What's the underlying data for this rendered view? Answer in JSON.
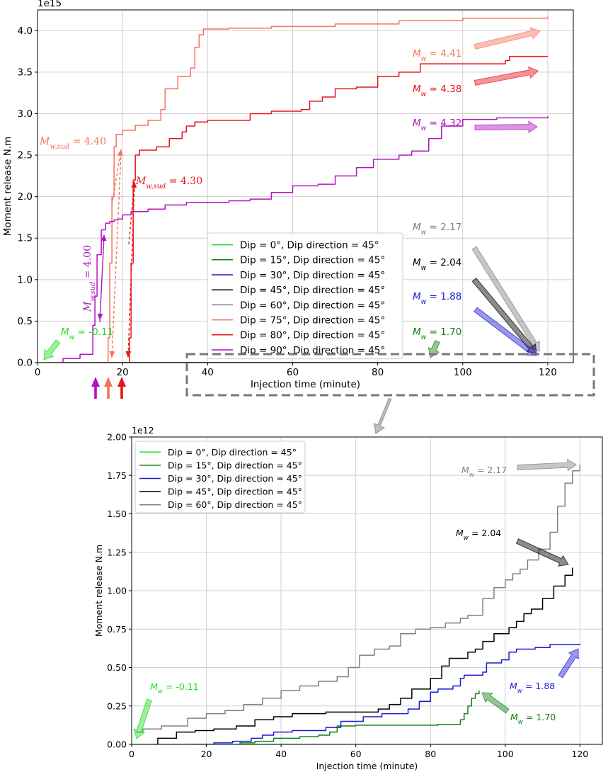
{
  "chart_data": [
    {
      "type": "line",
      "ylabel": "Moment release N.m",
      "xlabel": "Injection time (minute)",
      "exponent_label": "1e15",
      "xlim": [
        0,
        126
      ],
      "ylim": [
        0,
        4.25
      ],
      "xticks": [
        0,
        20,
        40,
        60,
        80,
        100,
        120
      ],
      "yticks": [
        0.0,
        0.5,
        1.0,
        1.5,
        2.0,
        2.5,
        3.0,
        3.5,
        4.0
      ],
      "grid": true,
      "legend_position": "center-right",
      "series": [
        {
          "name": "Dip =   0°, Dip direction = 45°",
          "color": "#22dd22",
          "points": [
            [
              0,
              0
            ],
            [
              120,
              4e-07
            ]
          ]
        },
        {
          "name": "Dip = 15°, Dip direction = 45°",
          "color": "#138013",
          "points": [
            [
              28,
              0
            ],
            [
              93,
              0.00035
            ]
          ]
        },
        {
          "name": "Dip = 30°, Dip direction = 45°",
          "color": "#1a1ad6",
          "points": [
            [
              15,
              0
            ],
            [
              120,
              0.00065
            ]
          ]
        },
        {
          "name": "Dip = 45°, Dip direction = 45°",
          "color": "#000000",
          "points": [
            [
              6,
              0
            ],
            [
              118,
              0.00115
            ]
          ]
        },
        {
          "name": "Dip = 60°, Dip direction = 45°",
          "color": "#808080",
          "points": [
            [
              1,
              0
            ],
            [
              120,
              0.0018
            ]
          ]
        },
        {
          "name": "Dip = 75°, Dip direction = 45°",
          "color": "#f4735b",
          "points": [
            [
              16,
              0
            ],
            [
              16.6,
              0.3
            ],
            [
              17,
              1.2
            ],
            [
              17.5,
              2.0
            ],
            [
              18,
              2.6
            ],
            [
              18.5,
              2.75
            ],
            [
              20,
              2.8
            ],
            [
              23,
              2.86
            ],
            [
              26,
              2.92
            ],
            [
              29,
              3.05
            ],
            [
              30,
              3.3
            ],
            [
              33,
              3.45
            ],
            [
              36,
              3.55
            ],
            [
              37,
              3.8
            ],
            [
              38,
              3.95
            ],
            [
              39,
              4.02
            ],
            [
              45,
              4.03
            ],
            [
              55,
              4.05
            ],
            [
              70,
              4.08
            ],
            [
              85,
              4.12
            ],
            [
              100,
              4.15
            ],
            [
              120,
              4.17
            ]
          ]
        },
        {
          "name": "Dip = 80°, Dip direction = 45°",
          "color": "#e8141a",
          "points": [
            [
              21,
              0
            ],
            [
              21.6,
              0.3
            ],
            [
              22,
              1.2
            ],
            [
              22.5,
              2.2
            ],
            [
              23,
              2.5
            ],
            [
              24,
              2.56
            ],
            [
              28,
              2.6
            ],
            [
              31,
              2.7
            ],
            [
              34,
              2.78
            ],
            [
              35,
              2.85
            ],
            [
              37,
              2.9
            ],
            [
              40,
              2.92
            ],
            [
              48,
              2.92
            ],
            [
              50,
              3.0
            ],
            [
              55,
              3.03
            ],
            [
              62,
              3.05
            ],
            [
              64,
              3.15
            ],
            [
              67,
              3.2
            ],
            [
              70,
              3.3
            ],
            [
              75,
              3.32
            ],
            [
              80,
              3.45
            ],
            [
              85,
              3.5
            ],
            [
              90,
              3.6
            ],
            [
              110,
              3.64
            ],
            [
              111,
              3.69
            ],
            [
              120,
              3.69
            ]
          ]
        },
        {
          "name": "Dip = 90°, Dip direction = 45°",
          "color": "#b014c0",
          "points": [
            [
              5,
              0
            ],
            [
              6,
              0.05
            ],
            [
              9,
              0.05
            ],
            [
              10,
              0.1
            ],
            [
              13,
              0.45
            ],
            [
              13.5,
              0.8
            ],
            [
              14,
              1.3
            ],
            [
              15,
              1.6
            ],
            [
              16,
              1.68
            ],
            [
              17,
              1.7
            ],
            [
              18,
              1.72
            ],
            [
              19,
              1.73
            ],
            [
              20,
              1.78
            ],
            [
              22,
              1.82
            ],
            [
              26,
              1.85
            ],
            [
              30,
              1.9
            ],
            [
              35,
              1.93
            ],
            [
              45,
              1.95
            ],
            [
              50,
              1.97
            ],
            [
              55,
              2.05
            ],
            [
              60,
              2.13
            ],
            [
              66,
              2.15
            ],
            [
              70,
              2.25
            ],
            [
              75,
              2.35
            ],
            [
              79,
              2.45
            ],
            [
              85,
              2.5
            ],
            [
              88,
              2.55
            ],
            [
              92,
              2.7
            ],
            [
              95,
              2.85
            ],
            [
              100,
              2.93
            ],
            [
              108,
              2.95
            ],
            [
              120,
              2.97
            ]
          ]
        }
      ],
      "annotations": [
        {
          "text": "M_w = 4.41",
          "label": "M",
          "sub": "w",
          "rest": " = 4.41",
          "color": "#f4735b"
        },
        {
          "text": "M_w = 4.38",
          "label": "M",
          "sub": "w",
          "rest": " = 4.38",
          "color": "#e8141a"
        },
        {
          "text": "M_w = 4.32",
          "label": "M",
          "sub": "w",
          "rest": " = 4.32",
          "color": "#b014c0"
        },
        {
          "text": "M_w = 2.17",
          "label": "M",
          "sub": "w",
          "rest": " = 2.17",
          "color": "#808080"
        },
        {
          "text": "M_w = 2.04",
          "label": "M",
          "sub": "w",
          "rest": " = 2.04",
          "color": "#000000"
        },
        {
          "text": "M_w = 1.88",
          "label": "M",
          "sub": "w",
          "rest": " = 1.88",
          "color": "#1a1ad6"
        },
        {
          "text": "M_w = 1.70",
          "label": "M",
          "sub": "w",
          "rest": " = 1.70",
          "color": "#138013"
        },
        {
          "text": "M_w = -0.11",
          "label": "M",
          "sub": "w",
          "rest": " = -0.11",
          "color": "#22dd22"
        },
        {
          "text": "M_w,sud = 4.40",
          "label": "M",
          "sub": "w,sud",
          "rest": " = 4.40",
          "color": "#f4735b"
        },
        {
          "text": "M_w,sud = 4.30",
          "label": "M",
          "sub": "w,sud",
          "rest": " = 4.30",
          "color": "#e8141a"
        },
        {
          "text": "M_w,sud = 4.00",
          "label": "M",
          "sub": "w,sud",
          "rest": " = 4.00",
          "color": "#b014c0"
        }
      ]
    },
    {
      "type": "line",
      "ylabel": "Moment release N.m",
      "xlabel": "Injection time (minute)",
      "exponent_label": "1e12",
      "xlim": [
        0,
        126
      ],
      "ylim": [
        0,
        2.0
      ],
      "xticks": [
        0,
        20,
        40,
        60,
        80,
        100,
        120
      ],
      "yticks": [
        0.0,
        0.25,
        0.5,
        0.75,
        1.0,
        1.25,
        1.5,
        1.75,
        2.0
      ],
      "ytick_labels": [
        "0.00",
        "0.25",
        "0.50",
        "0.75",
        "1.00",
        "1.25",
        "1.50",
        "1.75",
        "2.00"
      ],
      "grid": true,
      "legend_position": "top-left",
      "series": [
        {
          "name": "Dip =   0°, Dip direction = 45°",
          "color": "#22dd22",
          "points": [
            [
              0,
              0
            ],
            [
              120,
              0.0004
            ]
          ]
        },
        {
          "name": "Dip = 15°, Dip direction = 45°",
          "color": "#138013",
          "points": [
            [
              28,
              0
            ],
            [
              29,
              0.01
            ],
            [
              33,
              0.02
            ],
            [
              38,
              0.04
            ],
            [
              45,
              0.05
            ],
            [
              50,
              0.06
            ],
            [
              53,
              0.08
            ],
            [
              55,
              0.12
            ],
            [
              60,
              0.125
            ],
            [
              70,
              0.125
            ],
            [
              82,
              0.13
            ],
            [
              87,
              0.13
            ],
            [
              88,
              0.16
            ],
            [
              89,
              0.2
            ],
            [
              90,
              0.25
            ],
            [
              91,
              0.3
            ],
            [
              92,
              0.33
            ],
            [
              93,
              0.35
            ]
          ]
        },
        {
          "name": "Dip = 30°, Dip direction = 45°",
          "color": "#1a1ad6",
          "points": [
            [
              15,
              0
            ],
            [
              22,
              0.01
            ],
            [
              27,
              0.02
            ],
            [
              32,
              0.04
            ],
            [
              35,
              0.06
            ],
            [
              38,
              0.08
            ],
            [
              43,
              0.09
            ],
            [
              51,
              0.09
            ],
            [
              52,
              0.11
            ],
            [
              56,
              0.15
            ],
            [
              62,
              0.18
            ],
            [
              67,
              0.2
            ],
            [
              72,
              0.2
            ],
            [
              74,
              0.23
            ],
            [
              77,
              0.28
            ],
            [
              80,
              0.34
            ],
            [
              82,
              0.36
            ],
            [
              86,
              0.38
            ],
            [
              88,
              0.43
            ],
            [
              89,
              0.45
            ],
            [
              94,
              0.47
            ],
            [
              95,
              0.53
            ],
            [
              99,
              0.55
            ],
            [
              101,
              0.6
            ],
            [
              103,
              0.62
            ],
            [
              108,
              0.63
            ],
            [
              112,
              0.65
            ],
            [
              120,
              0.655
            ]
          ]
        },
        {
          "name": "Dip = 45°, Dip direction = 45°",
          "color": "#000000",
          "points": [
            [
              6,
              0
            ],
            [
              7,
              0.04
            ],
            [
              12,
              0.08
            ],
            [
              17,
              0.09
            ],
            [
              22,
              0.1
            ],
            [
              28,
              0.12
            ],
            [
              33,
              0.16
            ],
            [
              38,
              0.18
            ],
            [
              43,
              0.2
            ],
            [
              52,
              0.21
            ],
            [
              60,
              0.21
            ],
            [
              66,
              0.23
            ],
            [
              69,
              0.26
            ],
            [
              72,
              0.3
            ],
            [
              75,
              0.36
            ],
            [
              80,
              0.43
            ],
            [
              83,
              0.51
            ],
            [
              85,
              0.56
            ],
            [
              90,
              0.6
            ],
            [
              92,
              0.62
            ],
            [
              94,
              0.67
            ],
            [
              97,
              0.72
            ],
            [
              101,
              0.76
            ],
            [
              103,
              0.8
            ],
            [
              105,
              0.85
            ],
            [
              107,
              0.88
            ],
            [
              110,
              0.95
            ],
            [
              113,
              1.03
            ],
            [
              116,
              1.1
            ],
            [
              118,
              1.15
            ]
          ]
        },
        {
          "name": "Dip = 60°, Dip direction = 45°",
          "color": "#808080",
          "points": [
            [
              1,
              0.08
            ],
            [
              3,
              0.1
            ],
            [
              8,
              0.12
            ],
            [
              15,
              0.17
            ],
            [
              20,
              0.2
            ],
            [
              25,
              0.22
            ],
            [
              30,
              0.26
            ],
            [
              35,
              0.3
            ],
            [
              40,
              0.35
            ],
            [
              45,
              0.38
            ],
            [
              50,
              0.41
            ],
            [
              55,
              0.44
            ],
            [
              58,
              0.5
            ],
            [
              61,
              0.58
            ],
            [
              65,
              0.62
            ],
            [
              69,
              0.64
            ],
            [
              72,
              0.72
            ],
            [
              76,
              0.75
            ],
            [
              80,
              0.76
            ],
            [
              84,
              0.79
            ],
            [
              88,
              0.82
            ],
            [
              90,
              0.84
            ],
            [
              94,
              0.95
            ],
            [
              97,
              1.02
            ],
            [
              100,
              1.07
            ],
            [
              102,
              1.11
            ],
            [
              104,
              1.14
            ],
            [
              106,
              1.2
            ],
            [
              109,
              1.27
            ],
            [
              112,
              1.38
            ],
            [
              114,
              1.55
            ],
            [
              116,
              1.7
            ],
            [
              118,
              1.78
            ],
            [
              120,
              1.82
            ]
          ]
        }
      ],
      "annotations": [
        {
          "text": "M_w = 2.17",
          "label": "M",
          "sub": "w",
          "rest": " = 2.17",
          "color": "#808080"
        },
        {
          "text": "M_w = 2.04",
          "label": "M",
          "sub": "w",
          "rest": " = 2.04",
          "color": "#000000"
        },
        {
          "text": "M_w = 1.88",
          "label": "M",
          "sub": "w",
          "rest": " = 1.88",
          "color": "#1a1ad6"
        },
        {
          "text": "M_w = 1.70",
          "label": "M",
          "sub": "w",
          "rest": " = 1.70",
          "color": "#138013"
        },
        {
          "text": "M_w = -0.11",
          "label": "M",
          "sub": "w",
          "rest": " = -0.11",
          "color": "#22dd22"
        }
      ]
    }
  ]
}
